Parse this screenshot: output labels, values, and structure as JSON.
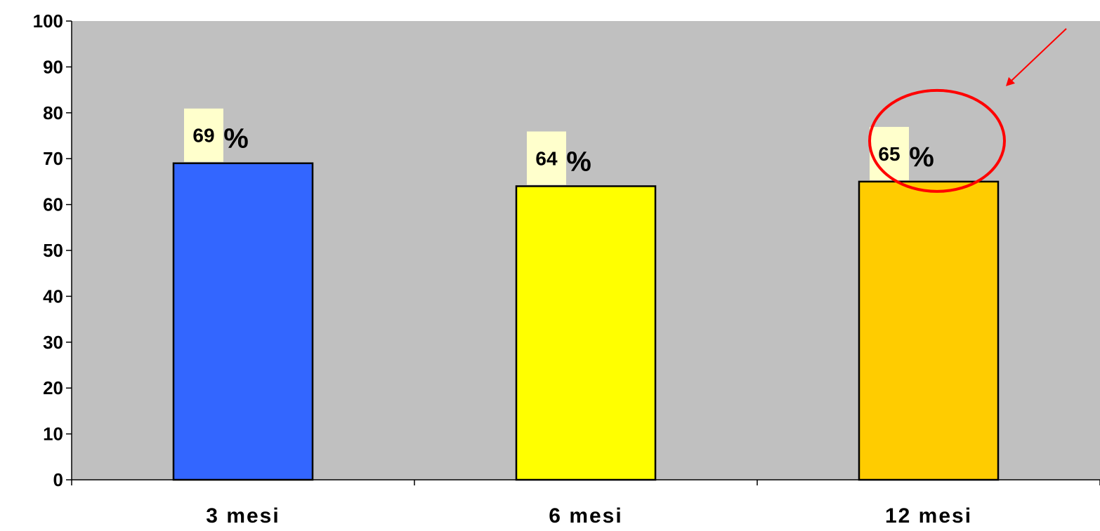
{
  "chart_data": {
    "type": "bar",
    "categories": [
      "3 mesi",
      "6 mesi",
      "12 mesi"
    ],
    "values": [
      69,
      64,
      65
    ],
    "data_labels": [
      "69",
      "64",
      "65"
    ],
    "label_suffix": "%",
    "bar_colors": [
      "#3366ff",
      "#ffff00",
      "#ffcc00"
    ],
    "plot_background": "#c0c0c0",
    "label_background": "#ffffcc",
    "ylim": [
      0,
      100
    ],
    "yticks": [
      0,
      10,
      20,
      30,
      40,
      50,
      60,
      70,
      80,
      90,
      100
    ],
    "grid": false,
    "legend": "none",
    "annotations": [
      {
        "type": "ellipse",
        "target": "12 mesi",
        "color": "#ff0000"
      },
      {
        "type": "arrow",
        "target": "12 mesi",
        "color": "#ff0000"
      }
    ]
  }
}
